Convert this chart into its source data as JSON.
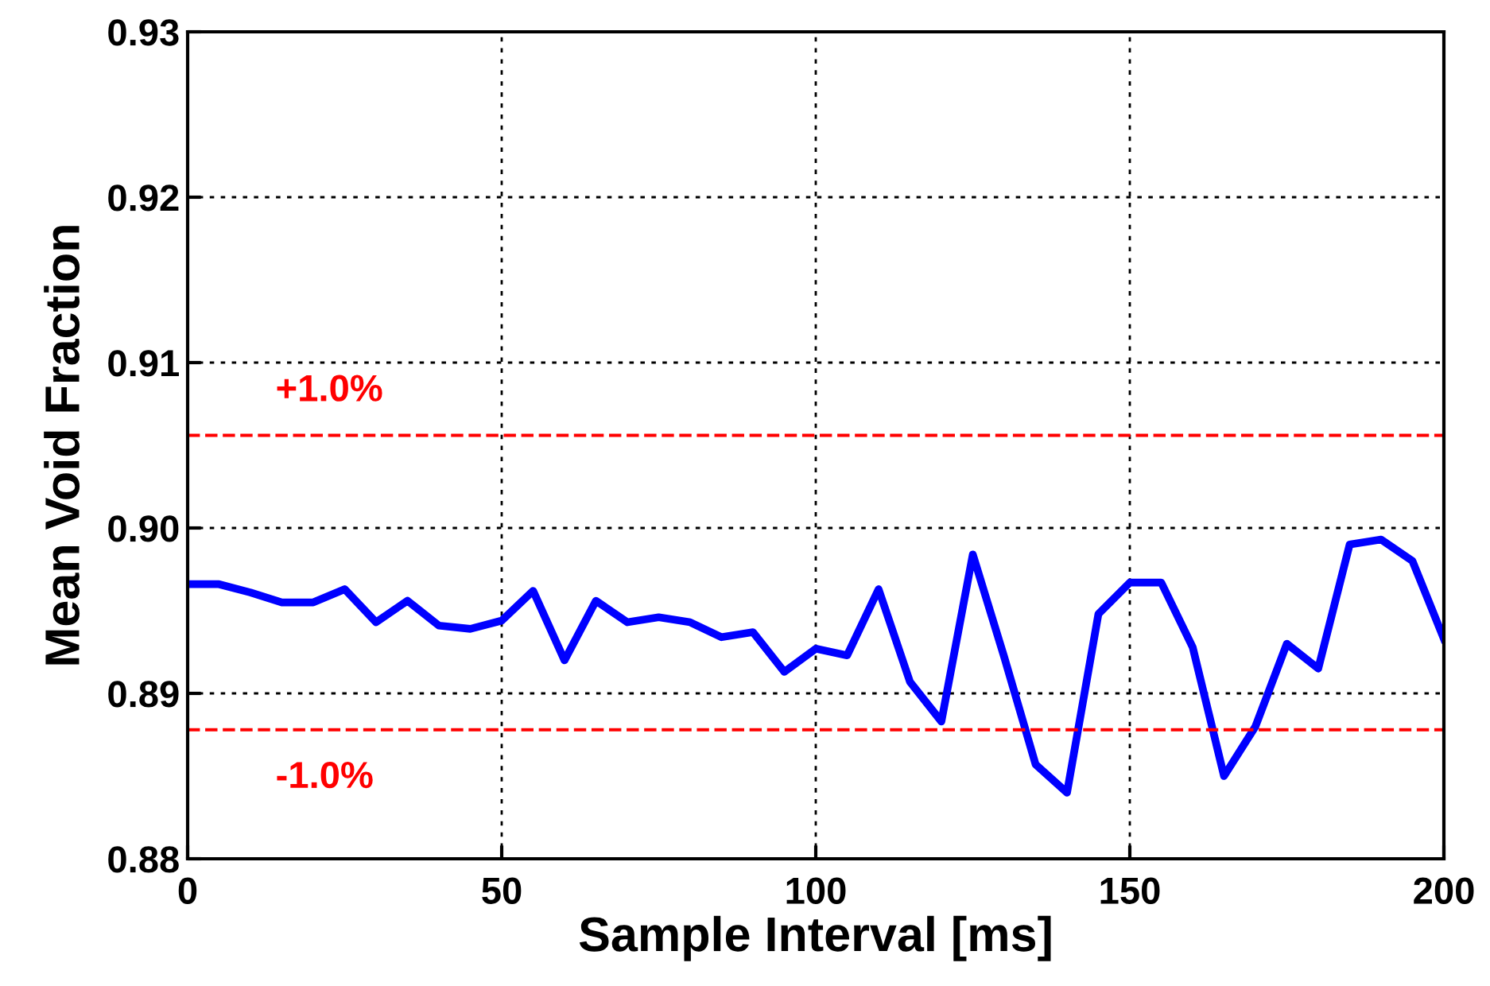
{
  "chart_data": {
    "type": "line",
    "xlabel": "Sample Interval [ms]",
    "ylabel": "Mean Void Fraction",
    "x": [
      0,
      5,
      10,
      15,
      20,
      25,
      30,
      35,
      40,
      45,
      50,
      55,
      60,
      65,
      70,
      75,
      80,
      85,
      90,
      95,
      100,
      105,
      110,
      115,
      120,
      125,
      130,
      135,
      140,
      145,
      150,
      155,
      160,
      165,
      170,
      175,
      180,
      185,
      190,
      195,
      200
    ],
    "series": [
      {
        "color": "#0000ff",
        "values": [
          0.8966,
          0.8966,
          0.8961,
          0.8955,
          0.8955,
          0.8963,
          0.8943,
          0.8956,
          0.8941,
          0.8939,
          0.8944,
          0.8962,
          0.892,
          0.8956,
          0.8943,
          0.8946,
          0.8943,
          0.8934,
          0.8937,
          0.8913,
          0.8927,
          0.8923,
          0.8963,
          0.8907,
          0.8883,
          0.8984,
          0.8922,
          0.8857,
          0.884,
          0.8948,
          0.8967,
          0.8967,
          0.8928,
          0.885,
          0.888,
          0.893,
          0.8915,
          0.899,
          0.8993,
          0.898,
          0.8933
        ]
      }
    ],
    "xlim": [
      0,
      200
    ],
    "xticks": [
      0,
      50,
      100,
      150,
      200
    ],
    "ylim": [
      0.88,
      0.93
    ],
    "yticks": [
      {
        "value": 0.88,
        "label": "0.88"
      },
      {
        "value": 0.89,
        "label": "0.89"
      },
      {
        "value": 0.9,
        "label": "0.90"
      },
      {
        "value": 0.91,
        "label": "0.91"
      },
      {
        "value": 0.92,
        "label": "0.92"
      },
      {
        "value": 0.93,
        "label": "0.93"
      }
    ],
    "ref_lines": [
      {
        "axis": "y",
        "value": 0.9056,
        "color": "#ff0000",
        "line_style": "dashed"
      },
      {
        "axis": "y",
        "value": 0.8878,
        "color": "#ff0000",
        "line_style": "dashed"
      }
    ],
    "annotations": [
      "+1.0%",
      "-1.0%"
    ],
    "grid": true,
    "marker": "none",
    "line_style": "solid",
    "legend": false
  }
}
